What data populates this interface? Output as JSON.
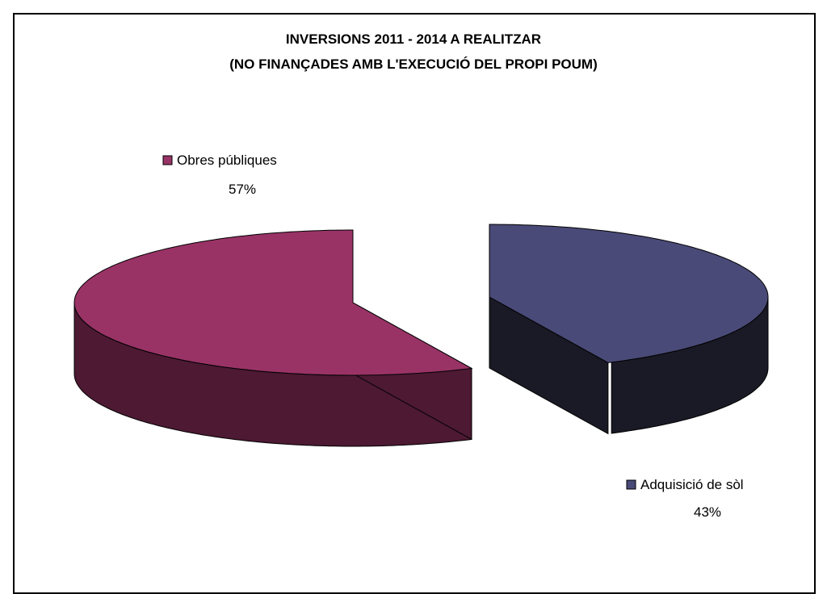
{
  "chart_data": {
    "type": "pie",
    "style": "3d-exploded",
    "title_lines": [
      "INVERSIONS 2011 - 2014 A REALITZAR",
      "(NO FINANÇADES AMB L'EXECUCIÓ DEL PROPI POUM)"
    ],
    "slices": [
      {
        "name": "Obres públiques",
        "value": 57,
        "percent_label": "57%",
        "top_color": "#993366",
        "side_color": "#4d1933"
      },
      {
        "name": "Adquisició de sòl",
        "value": 43,
        "percent_label": "43%",
        "top_color": "#4a4a78",
        "side_color": "#1a1a26"
      }
    ],
    "legend": "next-to-slices"
  }
}
